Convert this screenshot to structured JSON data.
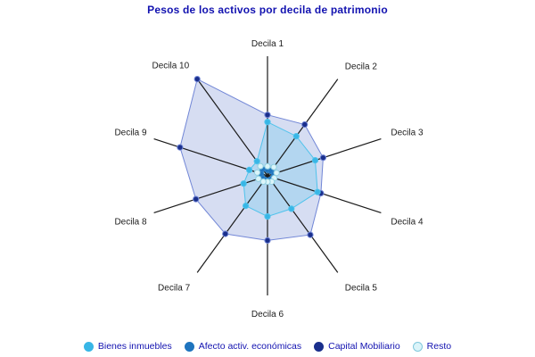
{
  "title": {
    "text": "Pesos de los activos por decila de patrimonio",
    "color": "#1212b0"
  },
  "chart_data": {
    "type": "radar",
    "title": "Pesos de los activos por decila de patrimonio",
    "categories": [
      "Decila 1",
      "Decila 2",
      "Decila 3",
      "Decila 4",
      "Decila 5",
      "Decila 6",
      "Decila 7",
      "Decila 8",
      "Decila 9",
      "Decila 10"
    ],
    "series": [
      {
        "name": "Bienes inmuebles",
        "values": [
          45,
          41,
          42,
          44,
          34,
          34,
          31,
          21,
          16,
          15
        ],
        "marker_color": "#38b6e6",
        "line_color": "#4fc3ec",
        "fill_color": "rgba(84,197,238,0.27)"
      },
      {
        "name": "Afecto activ. económicas",
        "values": [
          5,
          5,
          6,
          5,
          4,
          4,
          4,
          5,
          6,
          7
        ],
        "marker_color": "#1f74be",
        "line_color": "#2f80c4",
        "fill_color": "rgba(31,116,190,0.30)"
      },
      {
        "name": "Capital Mobiliario",
        "values": [
          51,
          53,
          49,
          47,
          61,
          54,
          60,
          63,
          77,
          100
        ],
        "marker_color": "#1a2f8c",
        "line_color": "#7186d6",
        "fill_color": "rgba(97,122,203,0.26)"
      },
      {
        "name": "Resto",
        "values": [
          8,
          9,
          8,
          6,
          6,
          5,
          6,
          8,
          9,
          10
        ],
        "marker_color": "#dbf4f9",
        "marker_border": "#8fcfe0",
        "line_color": "#a8dfec",
        "fill_color": "rgba(190,235,245,0.45)"
      }
    ],
    "draw_order": [
      2,
      0,
      1,
      3
    ],
    "radial_axis": {
      "min": 0,
      "max": 100,
      "tick_labels_visible": false,
      "gridlines": false
    },
    "axis_line_color": "#1a1a1a",
    "legend_position": "bottom",
    "note": "values are percent of the unlabeled radial axis maximum (Capital Mobiliario reaches the axis tip at Decila 10)"
  },
  "legend": {
    "items": [
      {
        "label": "Bienes inmuebles",
        "color": "#38b6e6",
        "border": "#38b6e6"
      },
      {
        "label": "Afecto activ. económicas",
        "color": "#1f74be",
        "border": "#1f74be"
      },
      {
        "label": "Capital Mobiliario",
        "color": "#1a2f8c",
        "border": "#1a2f8c"
      },
      {
        "label": "Resto",
        "color": "#dbf4f9",
        "border": "#7fc8dc"
      }
    ]
  }
}
